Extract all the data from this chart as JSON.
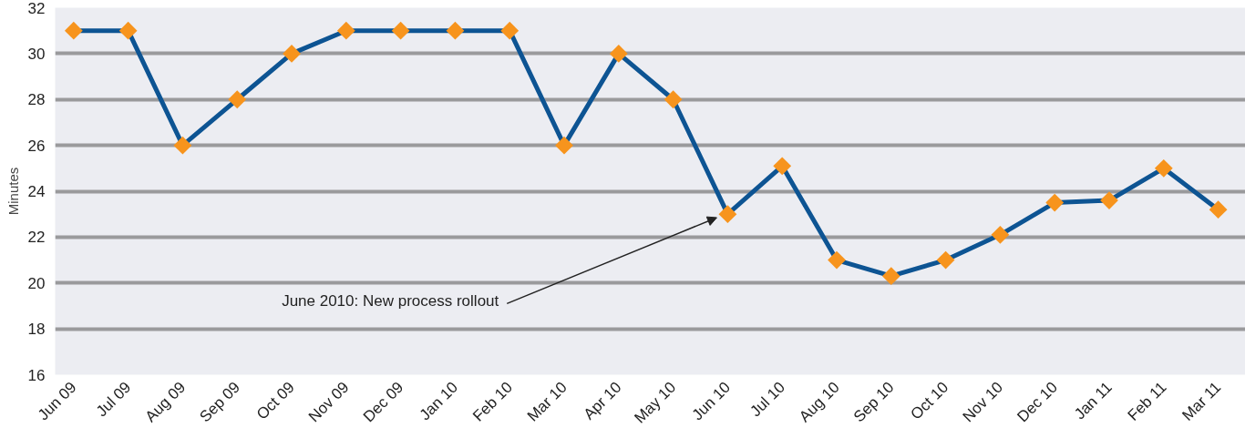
{
  "chart_data": {
    "type": "line",
    "ylabel": "Minutes",
    "categories": [
      "Jun 09",
      "Jul 09",
      "Aug 09",
      "Sep 09",
      "Oct 09",
      "Nov 09",
      "Dec 09",
      "Jan 10",
      "Feb 10",
      "Mar 10",
      "Apr 10",
      "May 10",
      "Jun 10",
      "Jul 10",
      "Aug 10",
      "Sep 10",
      "Oct 10",
      "Nov 10",
      "Dec 10",
      "Jan 11",
      "Feb 11",
      "Mar 11"
    ],
    "series": [
      {
        "color": "#0d5493",
        "colors": [
          "#f7941d",
          "#f7941d",
          "#f7941d",
          "#f7941d",
          "#f7941d",
          "#f7941d",
          "#f7941d",
          "#f7941d",
          "#f7941d",
          "#f7941d",
          "#f7941d",
          "#f7941d",
          "#f7941d",
          "#f7941d",
          "#f7941d",
          "#f7941d",
          "#f7941d",
          "#f7941d",
          "#f7941d",
          "#f7941d",
          "#f7941d",
          "#f7941d"
        ],
        "values": [
          31,
          31,
          26,
          28,
          30,
          31,
          31,
          31,
          31,
          26,
          30,
          28,
          23,
          25.1,
          21,
          20.3,
          21,
          22.1,
          23.5,
          23.6,
          25,
          23.2
        ]
      }
    ],
    "marker": "diamond",
    "line_style": "solid",
    "ylim": [
      16,
      32
    ],
    "yticks": [
      16,
      18,
      20,
      22,
      24,
      26,
      28,
      30,
      32
    ],
    "grid": "y",
    "annotations": [
      "June 2010: New process rollout"
    ]
  }
}
